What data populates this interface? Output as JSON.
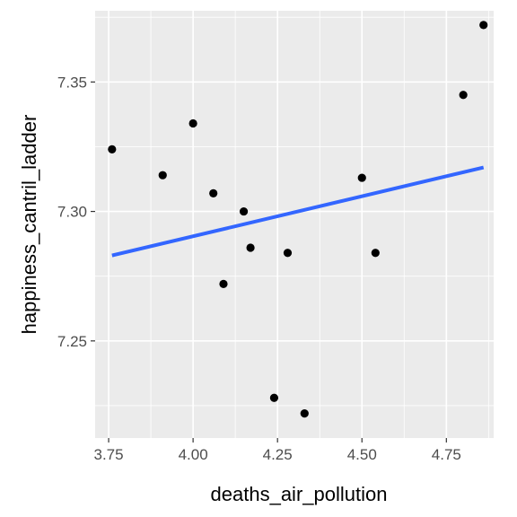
{
  "chart_data": {
    "type": "scatter",
    "title": "",
    "xlabel": "deaths_air_pollution",
    "ylabel": "happiness_cantril_ladder",
    "xlim": [
      3.71,
      4.89
    ],
    "ylim": [
      7.2125,
      7.3775
    ],
    "x_ticks": [
      3.75,
      4.0,
      4.25,
      4.5,
      4.75
    ],
    "x_tick_labels": [
      "3.75",
      "4.00",
      "4.25",
      "4.50",
      "4.75"
    ],
    "y_ticks": [
      7.25,
      7.3,
      7.35
    ],
    "y_tick_labels": [
      "7.25",
      "7.30",
      "7.35"
    ],
    "grid": true,
    "points": [
      {
        "x": 3.76,
        "y": 7.324
      },
      {
        "x": 3.91,
        "y": 7.314
      },
      {
        "x": 4.0,
        "y": 7.334
      },
      {
        "x": 4.06,
        "y": 7.307
      },
      {
        "x": 4.09,
        "y": 7.272
      },
      {
        "x": 4.15,
        "y": 7.3
      },
      {
        "x": 4.17,
        "y": 7.286
      },
      {
        "x": 4.24,
        "y": 7.228
      },
      {
        "x": 4.28,
        "y": 7.284
      },
      {
        "x": 4.33,
        "y": 7.222
      },
      {
        "x": 4.5,
        "y": 7.313
      },
      {
        "x": 4.54,
        "y": 7.284
      },
      {
        "x": 4.8,
        "y": 7.345
      },
      {
        "x": 4.86,
        "y": 7.372
      }
    ],
    "trend_line": {
      "x": [
        3.76,
        4.86
      ],
      "y": [
        7.283,
        7.317
      ]
    },
    "colors": {
      "panel_bg": "#ebebeb",
      "grid_major": "#ffffff",
      "point": "#000000",
      "trend": "#3366ff"
    }
  }
}
